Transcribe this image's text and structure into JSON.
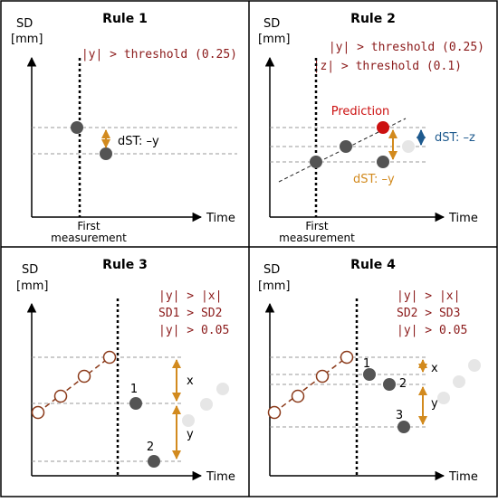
{
  "colors": {
    "condition_text": "#8b1a1a",
    "axis": "#000000",
    "guide": "#9a9a9a",
    "point_dark": "#545454",
    "point_light": "#e6e6e6",
    "prediction": "#cc1111",
    "history_line": "#8b3a1a",
    "arrow_orange": "#d28a1e",
    "arrow_blue": "#1e5a8e"
  },
  "panels": [
    {
      "title": "Rule 1",
      "y_axis_label": [
        "SD",
        "[mm]"
      ],
      "x_axis_label": "Time",
      "conditions": [
        "|y| > threshold (0.25)"
      ],
      "event_label": [
        "First",
        "measurement"
      ],
      "annotations": [
        "dST: –y"
      ]
    },
    {
      "title": "Rule 2",
      "y_axis_label": [
        "SD",
        "[mm]"
      ],
      "x_axis_label": "Time",
      "conditions": [
        "|y| > threshold (0.25)",
        "|z| > threshold (0.1)"
      ],
      "event_label": [
        "First",
        "measurement"
      ],
      "annotations": [
        "Prediction",
        "dST: –z",
        "dST: –y"
      ]
    },
    {
      "title": "Rule 3",
      "y_axis_label": [
        "SD",
        "[mm]"
      ],
      "x_axis_label": "Time",
      "conditions": [
        "|y| > |x|",
        "SD1 > SD2",
        "|y| > 0.05"
      ],
      "point_labels": [
        "1",
        "2"
      ],
      "annotations": [
        "x",
        "y"
      ]
    },
    {
      "title": "Rule 4",
      "y_axis_label": [
        "SD",
        "[mm]"
      ],
      "x_axis_label": "Time",
      "conditions": [
        "|y| > |x|",
        "SD2 > SD3",
        "|y| > 0.05"
      ],
      "point_labels": [
        "1",
        "2",
        "3"
      ],
      "annotations": [
        "x",
        "y"
      ]
    }
  ]
}
